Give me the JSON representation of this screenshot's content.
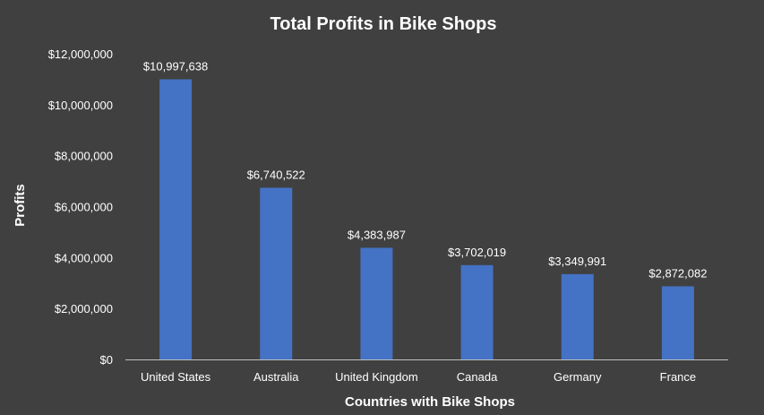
{
  "chart_data": {
    "type": "bar",
    "title": "Total Profits in Bike Shops",
    "xlabel": "Countries with Bike Shops",
    "ylabel": "Profits",
    "categories": [
      "United States",
      "Australia",
      "United Kingdom",
      "Canada",
      "Germany",
      "France"
    ],
    "values": [
      10997638,
      6740522,
      4383987,
      3702019,
      3349991,
      2872082
    ],
    "data_labels": [
      "$10,997,638",
      "$6,740,522",
      "$4,383,987",
      "$3,702,019",
      "$3,349,991",
      "$2,872,082"
    ],
    "ylim": [
      0,
      12000000
    ],
    "yticks": [
      0,
      2000000,
      4000000,
      6000000,
      8000000,
      10000000,
      12000000
    ],
    "ytick_labels": [
      "$0",
      "$2,000,000",
      "$4,000,000",
      "$6,000,000",
      "$8,000,000",
      "$10,000,000",
      "$12,000,000"
    ],
    "grid": false,
    "legend": "none",
    "bar_color": "#4472c4",
    "background_color": "#404040"
  }
}
